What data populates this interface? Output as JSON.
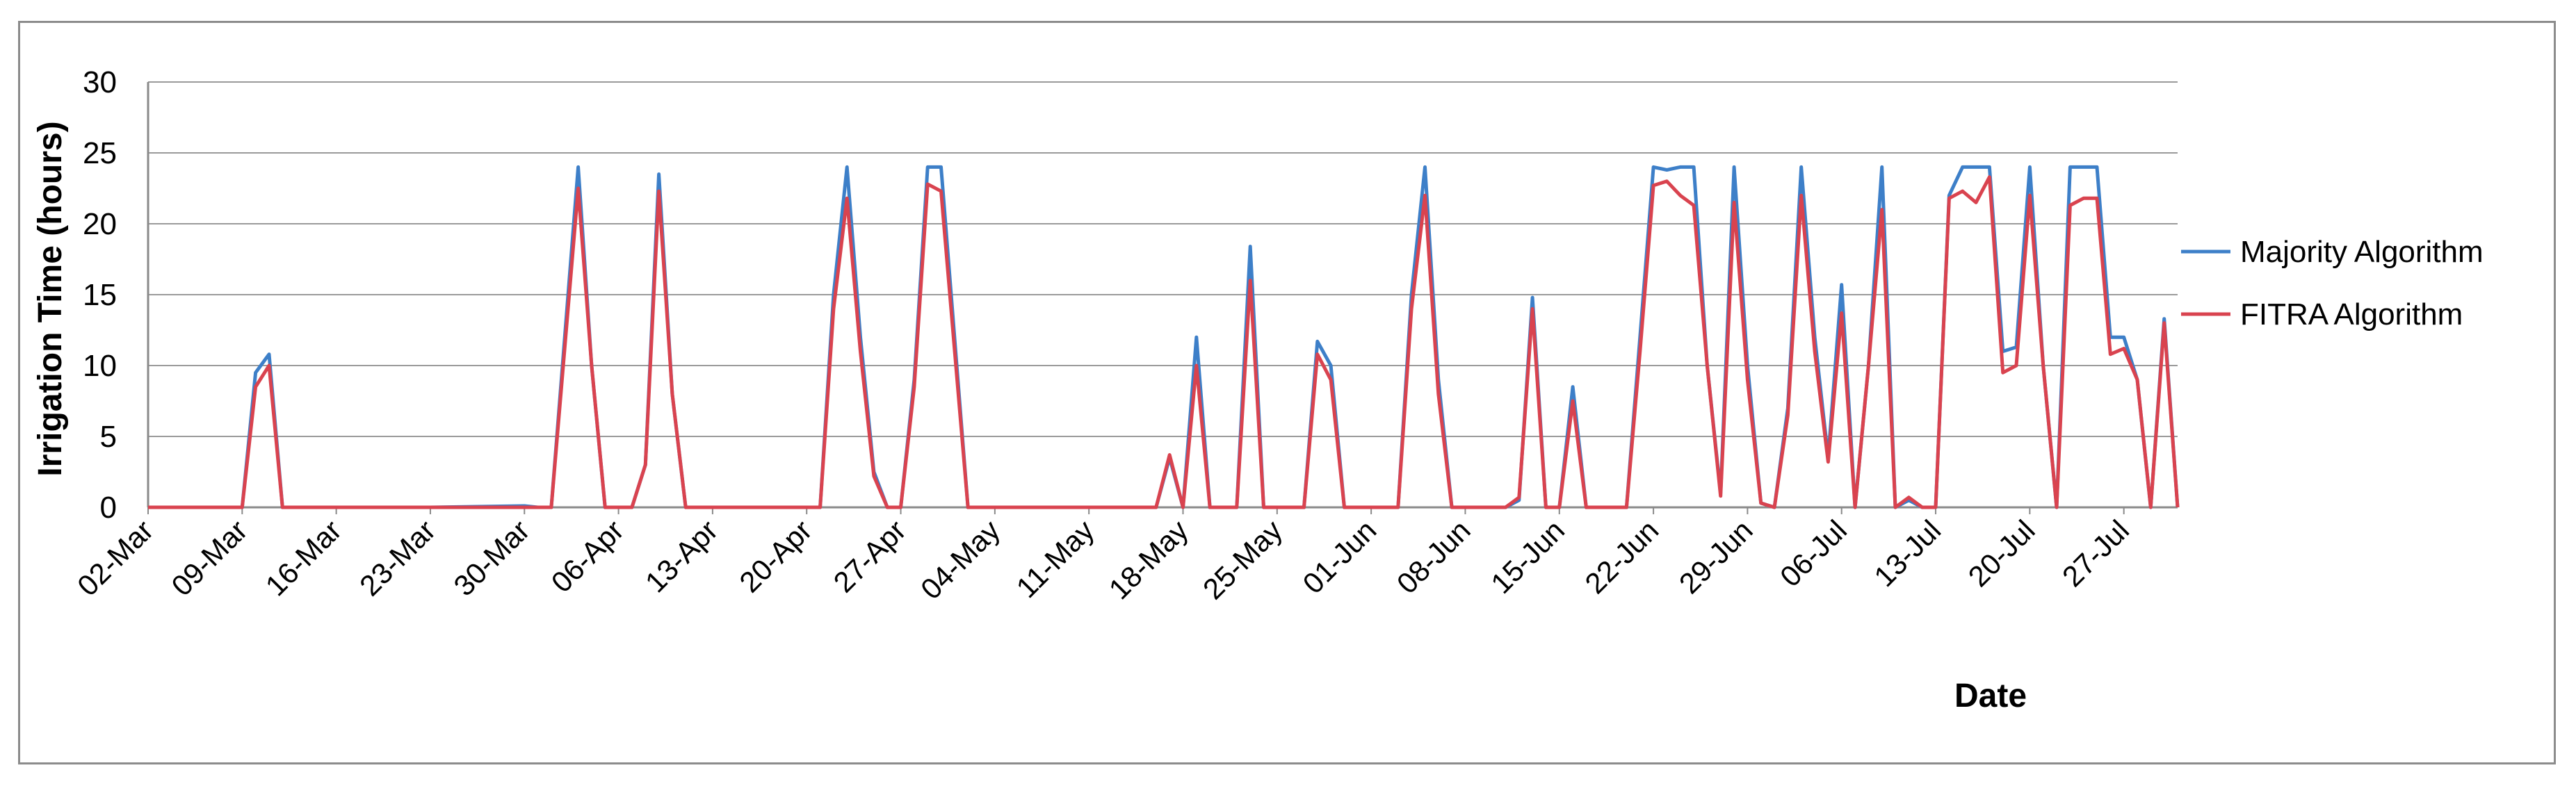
{
  "chart_data": {
    "type": "line",
    "title": "",
    "xlabel": "Date",
    "ylabel": "Irrigation Time (hours)",
    "ylim": [
      0,
      30
    ],
    "yticks": [
      0,
      5,
      10,
      15,
      20,
      25,
      30
    ],
    "xticks": [
      "02-Mar",
      "09-Mar",
      "16-Mar",
      "23-Mar",
      "30-Mar",
      "06-Apr",
      "13-Apr",
      "20-Apr",
      "27-Apr",
      "04-May",
      "11-May",
      "18-May",
      "25-May",
      "01-Jun",
      "08-Jun",
      "15-Jun",
      "22-Jun",
      "29-Jun",
      "06-Jul",
      "13-Jul",
      "20-Jul",
      "27-Jul"
    ],
    "x_range": [
      "02-Mar",
      "31-Jul"
    ],
    "grid": "horizontal",
    "legend_position": "right",
    "series": [
      {
        "name": "Majority Algorithm",
        "color": "#3d7fc8",
        "points": [
          [
            "02-Mar",
            0
          ],
          [
            "09-Mar",
            0
          ],
          [
            "10-Mar",
            9.5
          ],
          [
            "11-Mar",
            10.8
          ],
          [
            "12-Mar",
            0
          ],
          [
            "16-Mar",
            0
          ],
          [
            "23-Mar",
            0
          ],
          [
            "30-Mar",
            0.1
          ],
          [
            "31-Mar",
            0
          ],
          [
            "01-Apr",
            0
          ],
          [
            "03-Apr",
            24
          ],
          [
            "04-Apr",
            10
          ],
          [
            "05-Apr",
            0
          ],
          [
            "07-Apr",
            0
          ],
          [
            "08-Apr",
            3
          ],
          [
            "09-Apr",
            23.5
          ],
          [
            "10-Apr",
            8
          ],
          [
            "11-Apr",
            0
          ],
          [
            "20-Apr",
            0
          ],
          [
            "21-Apr",
            0
          ],
          [
            "22-Apr",
            15
          ],
          [
            "23-Apr",
            24
          ],
          [
            "24-Apr",
            12
          ],
          [
            "25-Apr",
            2.5
          ],
          [
            "26-Apr",
            0
          ],
          [
            "27-Apr",
            0
          ],
          [
            "28-Apr",
            9
          ],
          [
            "29-Apr",
            24
          ],
          [
            "30-Apr",
            24
          ],
          [
            "02-May",
            0
          ],
          [
            "11-May",
            0
          ],
          [
            "16-May",
            0
          ],
          [
            "17-May",
            3.5
          ],
          [
            "18-May",
            0
          ],
          [
            "19-May",
            12
          ],
          [
            "20-May",
            0
          ],
          [
            "21-May",
            0
          ],
          [
            "22-May",
            0
          ],
          [
            "23-May",
            18.4
          ],
          [
            "24-May",
            0
          ],
          [
            "27-May",
            0
          ],
          [
            "28-May",
            11.7
          ],
          [
            "29-May",
            10
          ],
          [
            "30-May",
            0
          ],
          [
            "03-Jun",
            0
          ],
          [
            "04-Jun",
            15
          ],
          [
            "05-Jun",
            24
          ],
          [
            "06-Jun",
            9
          ],
          [
            "07-Jun",
            0
          ],
          [
            "11-Jun",
            0
          ],
          [
            "12-Jun",
            0.5
          ],
          [
            "13-Jun",
            14.8
          ],
          [
            "14-Jun",
            0
          ],
          [
            "15-Jun",
            0
          ],
          [
            "16-Jun",
            8.5
          ],
          [
            "17-Jun",
            0
          ],
          [
            "20-Jun",
            0
          ],
          [
            "21-Jun",
            12
          ],
          [
            "22-Jun",
            24
          ],
          [
            "23-Jun",
            23.8
          ],
          [
            "24-Jun",
            24
          ],
          [
            "25-Jun",
            24
          ],
          [
            "26-Jun",
            10
          ],
          [
            "27-Jun",
            1
          ],
          [
            "28-Jun",
            24
          ],
          [
            "29-Jun",
            10
          ],
          [
            "30-Jun",
            0.3
          ],
          [
            "01-Jul",
            0
          ],
          [
            "02-Jul",
            7
          ],
          [
            "03-Jul",
            24
          ],
          [
            "04-Jul",
            12
          ],
          [
            "05-Jul",
            3.5
          ],
          [
            "06-Jul",
            15.7
          ],
          [
            "07-Jul",
            0
          ],
          [
            "08-Jul",
            10
          ],
          [
            "09-Jul",
            24
          ],
          [
            "10-Jul",
            0
          ],
          [
            "11-Jul",
            0.5
          ],
          [
            "12-Jul",
            0
          ],
          [
            "13-Jul",
            0
          ],
          [
            "14-Jul",
            22
          ],
          [
            "15-Jul",
            24
          ],
          [
            "16-Jul",
            24
          ],
          [
            "17-Jul",
            24
          ],
          [
            "18-Jul",
            11
          ],
          [
            "19-Jul",
            11.3
          ],
          [
            "20-Jul",
            24
          ],
          [
            "21-Jul",
            10
          ],
          [
            "22-Jul",
            0
          ],
          [
            "23-Jul",
            24
          ],
          [
            "24-Jul",
            24
          ],
          [
            "25-Jul",
            24
          ],
          [
            "26-Jul",
            12
          ],
          [
            "27-Jul",
            12
          ],
          [
            "28-Jul",
            9
          ],
          [
            "29-Jul",
            0
          ],
          [
            "30-Jul",
            13.3
          ],
          [
            "31-Jul",
            0
          ]
        ]
      },
      {
        "name": "FITRA Algorithm",
        "color": "#d9434f",
        "points": [
          [
            "02-Mar",
            0
          ],
          [
            "09-Mar",
            0
          ],
          [
            "10-Mar",
            8.5
          ],
          [
            "11-Mar",
            10
          ],
          [
            "12-Mar",
            0
          ],
          [
            "16-Mar",
            0
          ],
          [
            "23-Mar",
            0
          ],
          [
            "30-Mar",
            0
          ],
          [
            "31-Mar",
            0
          ],
          [
            "01-Apr",
            0
          ],
          [
            "03-Apr",
            22.5
          ],
          [
            "04-Apr",
            10
          ],
          [
            "05-Apr",
            0
          ],
          [
            "07-Apr",
            0
          ],
          [
            "08-Apr",
            3
          ],
          [
            "09-Apr",
            22.3
          ],
          [
            "10-Apr",
            8
          ],
          [
            "11-Apr",
            0
          ],
          [
            "20-Apr",
            0
          ],
          [
            "21-Apr",
            0
          ],
          [
            "22-Apr",
            14
          ],
          [
            "23-Apr",
            21.8
          ],
          [
            "24-Apr",
            11
          ],
          [
            "25-Apr",
            2.2
          ],
          [
            "26-Apr",
            0
          ],
          [
            "27-Apr",
            0
          ],
          [
            "28-Apr",
            8.5
          ],
          [
            "29-Apr",
            22.8
          ],
          [
            "30-Apr",
            22.3
          ],
          [
            "02-May",
            0
          ],
          [
            "11-May",
            0
          ],
          [
            "16-May",
            0
          ],
          [
            "17-May",
            3.7
          ],
          [
            "18-May",
            0
          ],
          [
            "19-May",
            10
          ],
          [
            "20-May",
            0
          ],
          [
            "21-May",
            0
          ],
          [
            "22-May",
            0
          ],
          [
            "23-May",
            16
          ],
          [
            "24-May",
            0
          ],
          [
            "27-May",
            0
          ],
          [
            "28-May",
            10.8
          ],
          [
            "29-May",
            9
          ],
          [
            "30-May",
            0
          ],
          [
            "03-Jun",
            0
          ],
          [
            "04-Jun",
            14
          ],
          [
            "05-Jun",
            22
          ],
          [
            "06-Jun",
            8
          ],
          [
            "07-Jun",
            0
          ],
          [
            "11-Jun",
            0
          ],
          [
            "12-Jun",
            0.7
          ],
          [
            "13-Jun",
            14
          ],
          [
            "14-Jun",
            0
          ],
          [
            "15-Jun",
            0
          ],
          [
            "16-Jun",
            7.5
          ],
          [
            "17-Jun",
            0
          ],
          [
            "20-Jun",
            0
          ],
          [
            "21-Jun",
            11
          ],
          [
            "22-Jun",
            22.7
          ],
          [
            "23-Jun",
            23
          ],
          [
            "24-Jun",
            22
          ],
          [
            "25-Jun",
            21.3
          ],
          [
            "26-Jun",
            10
          ],
          [
            "27-Jun",
            0.8
          ],
          [
            "28-Jun",
            21.5
          ],
          [
            "29-Jun",
            9
          ],
          [
            "30-Jun",
            0.3
          ],
          [
            "01-Jul",
            0
          ],
          [
            "02-Jul",
            6.5
          ],
          [
            "03-Jul",
            22
          ],
          [
            "04-Jul",
            11
          ],
          [
            "05-Jul",
            3.2
          ],
          [
            "06-Jul",
            13.7
          ],
          [
            "07-Jul",
            0
          ],
          [
            "08-Jul",
            10
          ],
          [
            "09-Jul",
            21
          ],
          [
            "10-Jul",
            0
          ],
          [
            "11-Jul",
            0.7
          ],
          [
            "12-Jul",
            0
          ],
          [
            "13-Jul",
            0
          ],
          [
            "14-Jul",
            21.8
          ],
          [
            "15-Jul",
            22.3
          ],
          [
            "16-Jul",
            21.5
          ],
          [
            "17-Jul",
            23.3
          ],
          [
            "18-Jul",
            9.5
          ],
          [
            "19-Jul",
            10
          ],
          [
            "20-Jul",
            22
          ],
          [
            "21-Jul",
            10
          ],
          [
            "22-Jul",
            0
          ],
          [
            "23-Jul",
            21.3
          ],
          [
            "24-Jul",
            21.8
          ],
          [
            "25-Jul",
            21.8
          ],
          [
            "26-Jul",
            10.8
          ],
          [
            "27-Jul",
            11.2
          ],
          [
            "28-Jul",
            9
          ],
          [
            "29-Jul",
            0
          ],
          [
            "30-Jul",
            13
          ],
          [
            "31-Jul",
            0
          ]
        ]
      }
    ]
  }
}
